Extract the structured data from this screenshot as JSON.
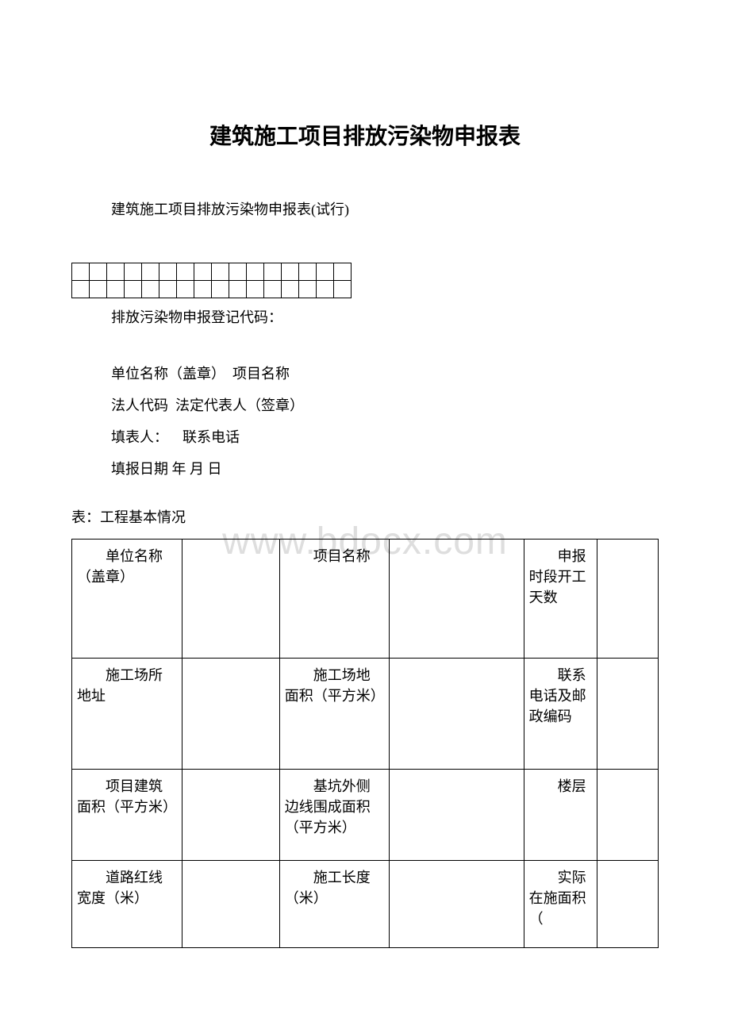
{
  "title": "建筑施工项目排放污染物申报表",
  "subtitle": "建筑施工项目排放污染物申报表(试行)",
  "code_grid": {
    "rows": 2,
    "cols": 16
  },
  "code_label": "排放污染物申报登记代码：",
  "info_lines": {
    "line1_a": "单位名称（盖章）",
    "line1_b": "项目名称",
    "line2_a": "法人代码",
    "line2_b": "法定代表人（签章）",
    "line3_a": "填表人：",
    "line3_b": "联系电话",
    "line4_a": "填报日期",
    "line4_b": "年 月 日"
  },
  "table_caption": "表：工程基本情况",
  "watermark_text": "www.bdocx.com",
  "table": {
    "rows": [
      {
        "c1": "　　单位名称（盖章）",
        "c2": "",
        "c3": "　　项目名称",
        "c4": "",
        "c5": "　　申报时段开工天数",
        "c6": ""
      },
      {
        "c1": "　　施工场所地址",
        "c2": "",
        "c3": "　　施工场地面积（平方米）",
        "c4": "",
        "c5": "　　联系电话及邮政编码",
        "c6": ""
      },
      {
        "c1": "　　项目建筑面积（平方米）",
        "c2": "",
        "c3": "　　基坑外侧边线围成面积（平方米）",
        "c4": "",
        "c5": "　　楼层",
        "c6": ""
      },
      {
        "c1": "　　道路红线宽度（米）",
        "c2": "",
        "c3": "　　施工长度（米）",
        "c4": "",
        "c5": "　　实际在施面积（",
        "c6": ""
      }
    ]
  },
  "colors": {
    "text": "#000000",
    "border": "#000000",
    "background": "#ffffff",
    "watermark": "#dedede"
  },
  "typography": {
    "title_fontsize": 28,
    "body_fontsize": 18,
    "watermark_fontsize": 48,
    "font_family": "SimSun"
  }
}
